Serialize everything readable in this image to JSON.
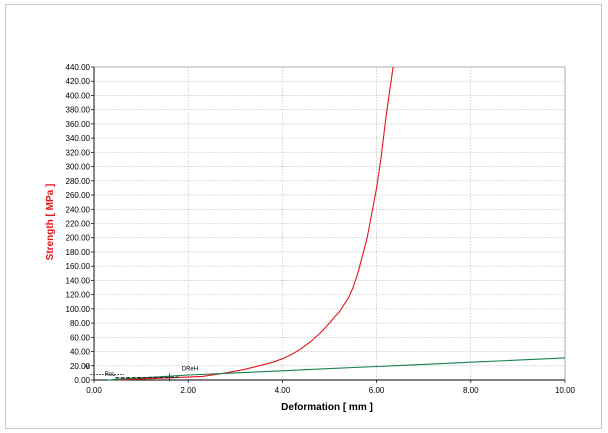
{
  "chart_data": {
    "type": "line",
    "xlabel": "Deformation [ mm ]",
    "ylabel": "Strength [ MPa ]",
    "xlim": [
      0,
      10
    ],
    "ylim": [
      0,
      440
    ],
    "grid": true,
    "x_ticks": [
      "0.00",
      "2.00",
      "4.00",
      "6.00",
      "8.00",
      "10.00"
    ],
    "y_ticks": [
      "0.00",
      "20.00",
      "40.00",
      "60.00",
      "80.00",
      "100.00",
      "120.00",
      "140.00",
      "160.00",
      "180.00",
      "200.00",
      "220.00",
      "240.00",
      "260.00",
      "280.00",
      "300.00",
      "320.00",
      "340.00",
      "360.00",
      "380.00",
      "400.00",
      "420.00",
      "440.00"
    ],
    "annotations": [
      {
        "label": "At",
        "x": 0.0,
        "y": 5.0
      },
      {
        "label": "ReL",
        "x": 0.5,
        "y": 3.0
      },
      {
        "label": "DReH",
        "x": 1.8,
        "y": 5.0
      }
    ],
    "series": [
      {
        "color": "#e8141c",
        "x": [
          0.5,
          2.3,
          2.8,
          3.2,
          3.5,
          3.8,
          4.0,
          4.2,
          4.4,
          4.6,
          4.8,
          5.0,
          5.1,
          5.2,
          5.3,
          5.4,
          5.5,
          5.6,
          5.7,
          5.8,
          5.9,
          6.0,
          6.1,
          6.2,
          6.35
        ],
        "y": [
          0,
          5,
          10,
          15,
          20,
          25,
          30,
          36,
          44,
          54,
          66,
          80,
          88,
          95,
          105,
          115,
          130,
          150,
          175,
          200,
          235,
          270,
          315,
          370,
          440
        ]
      },
      {
        "color": "#17804a",
        "x": [
          0.3,
          1.0,
          2.0,
          3.0,
          4.0,
          5.0,
          6.0,
          7.0,
          8.0,
          9.0,
          10.0
        ],
        "y": [
          0,
          3,
          7,
          10,
          13,
          16,
          19,
          22,
          25,
          28,
          31
        ]
      },
      {
        "color": "#222222",
        "dashed": true,
        "x": [
          0.45,
          1.8
        ],
        "y": [
          3,
          4
        ]
      }
    ]
  }
}
